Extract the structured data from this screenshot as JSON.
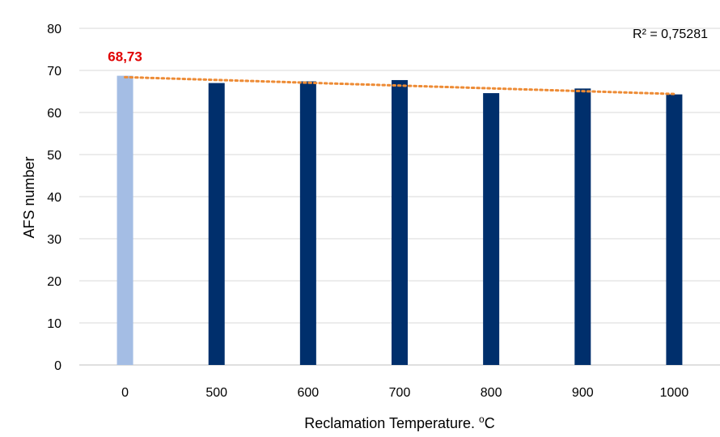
{
  "chart_data": {
    "type": "bar",
    "categories": [
      "0",
      "500",
      "600",
      "700",
      "800",
      "900",
      "1000"
    ],
    "values": [
      68.73,
      67.0,
      67.4,
      67.7,
      64.6,
      65.7,
      64.3
    ],
    "data_labels": [
      {
        "index": 0,
        "text": "68,73"
      }
    ],
    "xlabel": "Reclamation Temperature. ºC",
    "xlabel_main": "Reclamation Temperature. ",
    "xlabel_sup": "o",
    "xlabel_unit": "C",
    "ylabel": "AFS number",
    "ylim": [
      0,
      80
    ],
    "yticks": [
      "0",
      "10",
      "20",
      "30",
      "40",
      "50",
      "60",
      "70",
      "80"
    ],
    "grid": true,
    "legend": "none",
    "trendline": {
      "type": "linear",
      "r2_label": "R² = 0,75281",
      "start": 68.4,
      "end": 64.4
    },
    "colors": {
      "highlight_bar": "#A4BDE4",
      "bar": "#002F6C",
      "trendline": "#ED8B35",
      "data_label": "#E00000",
      "grid": "#D9D9D9",
      "axis": "#BFBFBF"
    }
  }
}
